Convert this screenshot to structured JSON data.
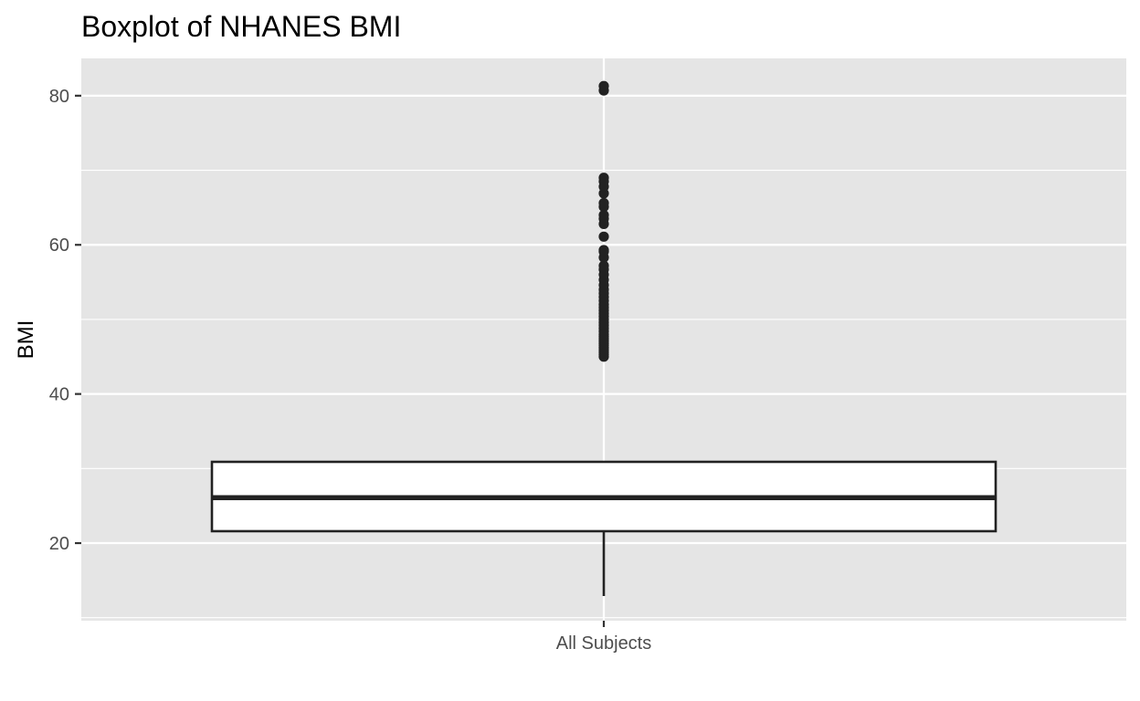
{
  "chart_data": {
    "type": "boxplot",
    "title": "Boxplot of NHANES BMI",
    "xlabel": "",
    "ylabel": "BMI",
    "categories": [
      "All Subjects"
    ],
    "ylim": [
      9.6,
      85.0
    ],
    "yticks": [
      20,
      40,
      60,
      80
    ],
    "grid": true,
    "legend": "none",
    "boxes": [
      {
        "category": "All Subjects",
        "whisker_low": 12.9,
        "q1": 21.6,
        "median": 26.1,
        "q3": 30.9,
        "whisker_high": 31.0,
        "outliers": [
          45.0,
          45.3,
          45.6,
          45.9,
          46.2,
          46.5,
          46.8,
          47.1,
          47.4,
          47.7,
          48.0,
          48.4,
          48.8,
          49.2,
          49.6,
          50.0,
          50.4,
          50.8,
          51.2,
          51.6,
          52.0,
          52.5,
          53.0,
          53.5,
          54.0,
          54.6,
          55.3,
          56.0,
          56.7,
          57.2,
          58.3,
          59.1,
          59.3,
          61.1,
          62.8,
          63.5,
          64.0,
          65.1,
          65.6,
          66.9,
          67.8,
          68.5,
          69.0,
          80.7,
          81.3
        ]
      }
    ]
  },
  "colors": {
    "panel": "#e5e5e5",
    "grid": "#ffffff",
    "box_fill": "#ffffff",
    "box_line": "#222222",
    "outlier": "#222222",
    "tick_text": "#4d4d4d"
  }
}
